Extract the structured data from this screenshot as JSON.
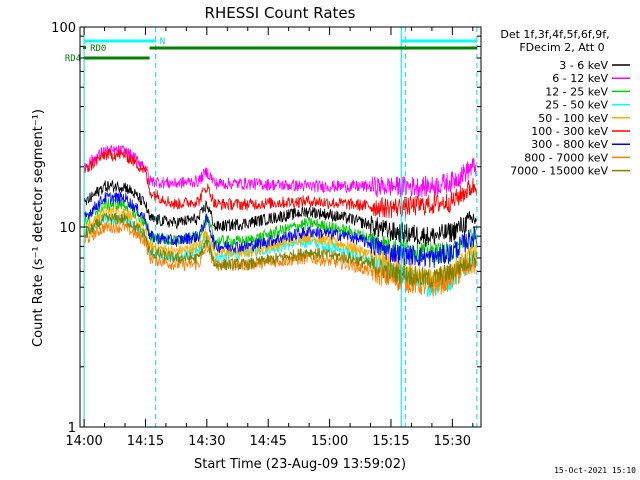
{
  "chart_data": {
    "type": "line",
    "title": "RHESSI Count Rates",
    "xlabel": "Start Time (23-Aug-09 13:59:02)",
    "ylabel": "Count Rate (s⁻¹ detector segment⁻¹)",
    "yscale": "log",
    "ylim": [
      1,
      100
    ],
    "xlim_minutes": [
      -1,
      97
    ],
    "x_ticks": [
      {
        "label": "14:00",
        "min": 0
      },
      {
        "label": "14:15",
        "min": 15
      },
      {
        "label": "14:30",
        "min": 30
      },
      {
        "label": "14:45",
        "min": 45
      },
      {
        "label": "15:00",
        "min": 60
      },
      {
        "label": "15:15",
        "min": 75
      },
      {
        "label": "15:30",
        "min": 90
      }
    ],
    "y_tick_labels": [
      "1",
      "10",
      "100"
    ],
    "legend": {
      "title": [
        "Det 1f,3f,4f,5f,6f,9f,",
        "FDecim 2, Att 0"
      ],
      "placement": "right"
    },
    "series": [
      {
        "name": "3 - 6 keV",
        "color": "#000000",
        "x_min": [
          0,
          5,
          10,
          15,
          16,
          22,
          28,
          30,
          32,
          40,
          55,
          65,
          75,
          85,
          90,
          95
        ],
        "values": [
          13,
          16,
          16,
          13,
          11,
          10.5,
          11,
          13,
          10,
          10.5,
          12,
          11,
          9.5,
          9,
          9.5,
          11
        ]
      },
      {
        "name": "6 - 12 keV",
        "color": "#ff00ff",
        "x_min": [
          0,
          5,
          10,
          15,
          16,
          22,
          28,
          30,
          32,
          40,
          55,
          65,
          75,
          85,
          90,
          95
        ],
        "values": [
          20,
          24,
          24,
          20,
          17,
          16.5,
          17,
          19,
          16.5,
          16.5,
          16,
          16,
          16,
          16,
          17,
          20
        ]
      },
      {
        "name": "12 - 25 keV",
        "color": "#00cc00",
        "x_min": [
          0,
          5,
          10,
          15,
          16,
          22,
          28,
          30,
          32,
          40,
          55,
          65,
          75,
          85,
          90,
          95
        ],
        "values": [
          10.5,
          13,
          13,
          10.5,
          9,
          8.5,
          9,
          11,
          8.5,
          8.5,
          10.5,
          9.5,
          8,
          7.5,
          7.5,
          9
        ]
      },
      {
        "name": "25 - 50 keV",
        "color": "#00ffff",
        "x_min": [
          0,
          5,
          10,
          15,
          16,
          22,
          28,
          30,
          32,
          40,
          55,
          65,
          75,
          85,
          90,
          95
        ],
        "values": [
          9,
          11,
          11,
          9,
          7.5,
          7,
          7.5,
          9,
          7,
          7.5,
          8.5,
          7.5,
          6,
          5,
          5.5,
          7
        ]
      },
      {
        "name": "50 - 100 keV",
        "color": "#ffaa00",
        "x_min": [
          0,
          5,
          10,
          15,
          16,
          22,
          28,
          30,
          32,
          40,
          55,
          65,
          75,
          85,
          90,
          95
        ],
        "values": [
          9.5,
          12,
          12,
          9.5,
          8,
          7.5,
          8,
          9.5,
          7.5,
          7.5,
          9,
          8,
          6.5,
          5.5,
          6,
          7.5
        ]
      },
      {
        "name": "100 - 300 keV",
        "color": "#ff0000",
        "x_min": [
          0,
          5,
          10,
          15,
          16,
          22,
          28,
          30,
          32,
          40,
          55,
          65,
          75,
          85,
          90,
          95
        ],
        "values": [
          19,
          23,
          23,
          19,
          15,
          13,
          13.5,
          16,
          13,
          13,
          13.5,
          13,
          12.5,
          13,
          13.5,
          16
        ]
      },
      {
        "name": "300 - 800 keV",
        "color": "#0000ff",
        "x_min": [
          0,
          5,
          10,
          15,
          16,
          22,
          28,
          30,
          32,
          40,
          55,
          65,
          75,
          85,
          90,
          95
        ],
        "values": [
          11,
          14,
          14,
          11,
          9,
          8.5,
          9,
          11,
          8,
          8,
          9.5,
          9,
          7.5,
          7,
          7.5,
          9
        ]
      },
      {
        "name": "800 - 7000 keV",
        "color": "#ff8000",
        "x_min": [
          0,
          5,
          10,
          15,
          16,
          22,
          28,
          30,
          32,
          40,
          55,
          65,
          75,
          85,
          90,
          95
        ],
        "values": [
          8.5,
          10,
          10,
          8.5,
          7,
          6.5,
          6.5,
          8,
          6.5,
          6.5,
          7,
          6.5,
          5.5,
          5,
          5.5,
          6.5
        ]
      },
      {
        "name": "7000 - 15000 keV",
        "color": "#808000",
        "x_min": [
          0,
          5,
          10,
          15,
          16,
          22,
          28,
          30,
          32,
          40,
          55,
          65,
          75,
          85,
          90,
          95
        ],
        "values": [
          9,
          11,
          11,
          9,
          7.5,
          7,
          7,
          8.5,
          6.5,
          6.5,
          7.5,
          7,
          6,
          5.5,
          6,
          7
        ]
      }
    ],
    "vertical_lines_min": [
      17.5,
      78.5,
      96
    ],
    "annotations": {
      "n_label": "N",
      "rd0_label": "RD0",
      "rd4_label": "RD4"
    }
  },
  "footer_timestamp": "15-Oct-2021 15:10"
}
